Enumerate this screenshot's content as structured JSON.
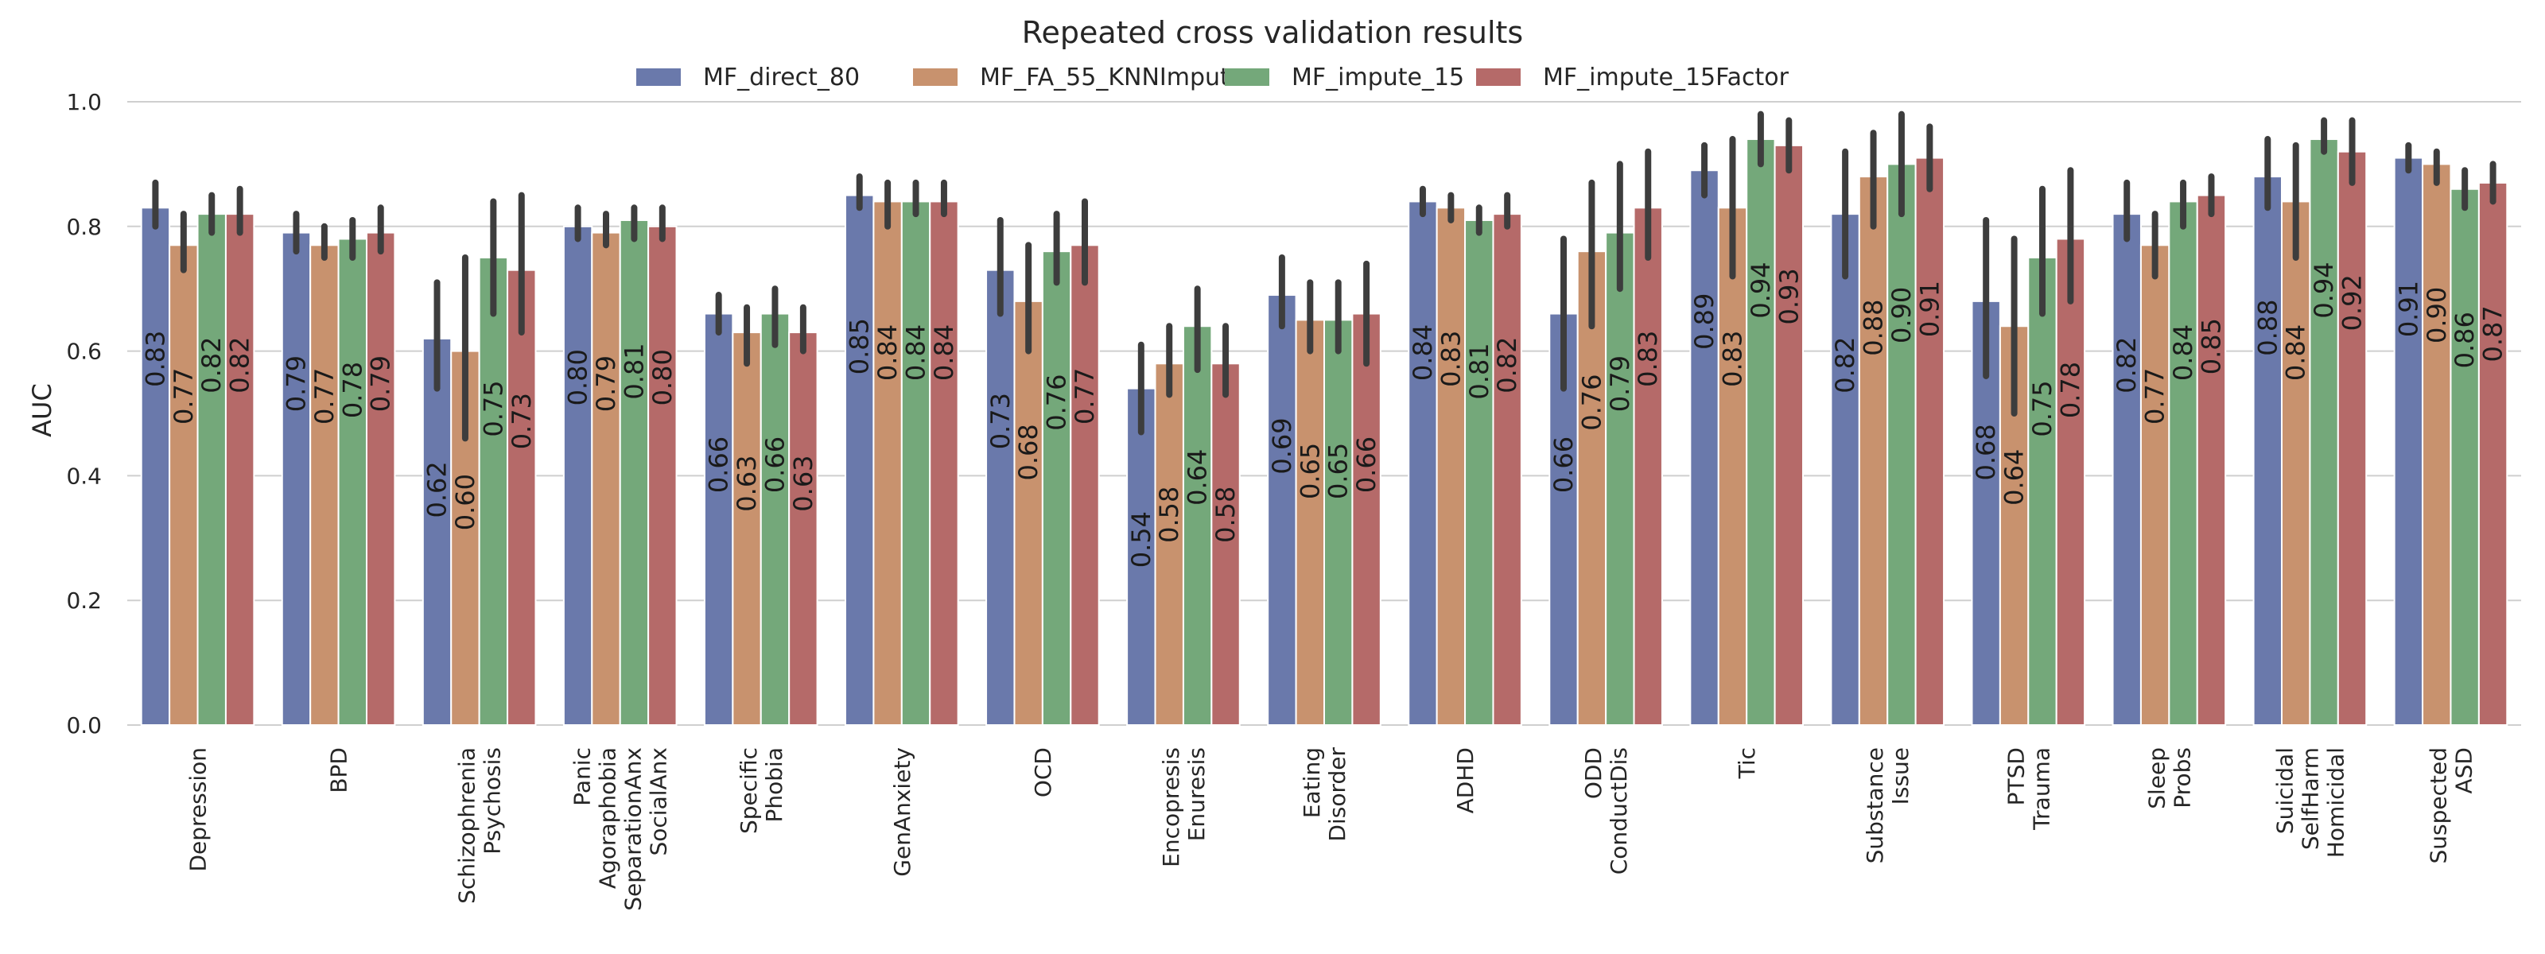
{
  "chart_data": {
    "type": "bar",
    "title": "Repeated cross validation results",
    "xlabel": "",
    "ylabel": "AUC",
    "ylim": [
      0,
      1.0
    ],
    "yticks": [
      "0.0",
      "0.2",
      "0.4",
      "0.6",
      "0.8",
      "1.0"
    ],
    "grid": true,
    "legend_position": "top-center",
    "colors": [
      "#6a79ab",
      "#c8926e",
      "#74a87a",
      "#b56a69"
    ],
    "categories": [
      [
        "Depression"
      ],
      [
        "BPD"
      ],
      [
        "Schizophrenia",
        "Psychosis"
      ],
      [
        "Panic",
        "Agoraphobia",
        "SeparationAnx",
        "SocialAnx"
      ],
      [
        "Specific",
        "Phobia"
      ],
      [
        "GenAnxiety"
      ],
      [
        "OCD"
      ],
      [
        "Encopresis",
        "Enuresis"
      ],
      [
        "Eating",
        "Disorder"
      ],
      [
        "ADHD"
      ],
      [
        "ODD",
        "ConductDis"
      ],
      [
        "Tic"
      ],
      [
        "Substance",
        "Issue"
      ],
      [
        "PTSD",
        "Trauma"
      ],
      [
        "Sleep",
        "Probs"
      ],
      [
        "Suicidal",
        "SelfHarm",
        "Homicidal"
      ],
      [
        "Suspected",
        "ASD"
      ]
    ],
    "series": [
      {
        "name": "MF_direct_80",
        "values": [
          0.83,
          0.79,
          0.62,
          0.8,
          0.66,
          0.85,
          0.73,
          0.54,
          0.69,
          0.84,
          0.66,
          0.89,
          0.82,
          0.68,
          0.82,
          0.88,
          0.91
        ],
        "labels": [
          "0.83",
          "0.79",
          "0.62",
          "0.80",
          "0.66",
          "0.85",
          "0.73",
          "0.54",
          "0.69",
          "0.84",
          "0.66",
          "0.89",
          "0.82",
          "0.68",
          "0.82",
          "0.88",
          "0.91"
        ],
        "err_low": [
          0.8,
          0.76,
          0.54,
          0.78,
          0.63,
          0.83,
          0.66,
          0.47,
          0.64,
          0.82,
          0.54,
          0.85,
          0.72,
          0.56,
          0.78,
          0.83,
          0.89
        ],
        "err_high": [
          0.87,
          0.82,
          0.71,
          0.83,
          0.69,
          0.88,
          0.81,
          0.61,
          0.75,
          0.86,
          0.78,
          0.93,
          0.92,
          0.81,
          0.87,
          0.94,
          0.93
        ]
      },
      {
        "name": "MF_FA_55_KNNImpute",
        "values": [
          0.77,
          0.77,
          0.6,
          0.79,
          0.63,
          0.84,
          0.68,
          0.58,
          0.65,
          0.83,
          0.76,
          0.83,
          0.88,
          0.64,
          0.77,
          0.84,
          0.9
        ],
        "labels": [
          "0.77",
          "0.77",
          "0.60",
          "0.79",
          "0.63",
          "0.84",
          "0.68",
          "0.58",
          "0.65",
          "0.83",
          "0.76",
          "0.83",
          "0.88",
          "0.64",
          "0.77",
          "0.84",
          "0.90"
        ],
        "err_low": [
          0.73,
          0.75,
          0.46,
          0.77,
          0.58,
          0.8,
          0.6,
          0.53,
          0.6,
          0.81,
          0.64,
          0.72,
          0.8,
          0.5,
          0.72,
          0.75,
          0.87
        ],
        "err_high": [
          0.82,
          0.8,
          0.75,
          0.82,
          0.67,
          0.87,
          0.77,
          0.64,
          0.71,
          0.85,
          0.87,
          0.94,
          0.95,
          0.78,
          0.82,
          0.93,
          0.92
        ]
      },
      {
        "name": "MF_impute_15",
        "values": [
          0.82,
          0.78,
          0.75,
          0.81,
          0.66,
          0.84,
          0.76,
          0.64,
          0.65,
          0.81,
          0.79,
          0.94,
          0.9,
          0.75,
          0.84,
          0.94,
          0.86
        ],
        "labels": [
          "0.82",
          "0.78",
          "0.75",
          "0.81",
          "0.66",
          "0.84",
          "0.76",
          "0.64",
          "0.65",
          "0.81",
          "0.79",
          "0.94",
          "0.90",
          "0.75",
          "0.84",
          "0.94",
          "0.86"
        ],
        "err_low": [
          0.79,
          0.75,
          0.66,
          0.78,
          0.61,
          0.82,
          0.71,
          0.57,
          0.6,
          0.79,
          0.7,
          0.9,
          0.82,
          0.66,
          0.8,
          0.92,
          0.83
        ],
        "err_high": [
          0.85,
          0.81,
          0.84,
          0.83,
          0.7,
          0.87,
          0.82,
          0.7,
          0.71,
          0.83,
          0.9,
          0.98,
          0.98,
          0.86,
          0.87,
          0.97,
          0.89
        ]
      },
      {
        "name": "MF_impute_15Factor",
        "values": [
          0.82,
          0.79,
          0.73,
          0.8,
          0.63,
          0.84,
          0.77,
          0.58,
          0.66,
          0.82,
          0.83,
          0.93,
          0.91,
          0.78,
          0.85,
          0.92,
          0.87
        ],
        "labels": [
          "0.82",
          "0.79",
          "0.73",
          "0.80",
          "0.63",
          "0.84",
          "0.77",
          "0.58",
          "0.66",
          "0.82",
          "0.83",
          "0.93",
          "0.91",
          "0.78",
          "0.85",
          "0.92",
          "0.87"
        ],
        "err_low": [
          0.79,
          0.76,
          0.63,
          0.78,
          0.6,
          0.82,
          0.71,
          0.53,
          0.58,
          0.8,
          0.75,
          0.89,
          0.86,
          0.68,
          0.82,
          0.87,
          0.84
        ],
        "err_high": [
          0.86,
          0.83,
          0.85,
          0.83,
          0.67,
          0.87,
          0.84,
          0.64,
          0.74,
          0.85,
          0.92,
          0.97,
          0.96,
          0.89,
          0.88,
          0.97,
          0.9
        ]
      }
    ]
  }
}
